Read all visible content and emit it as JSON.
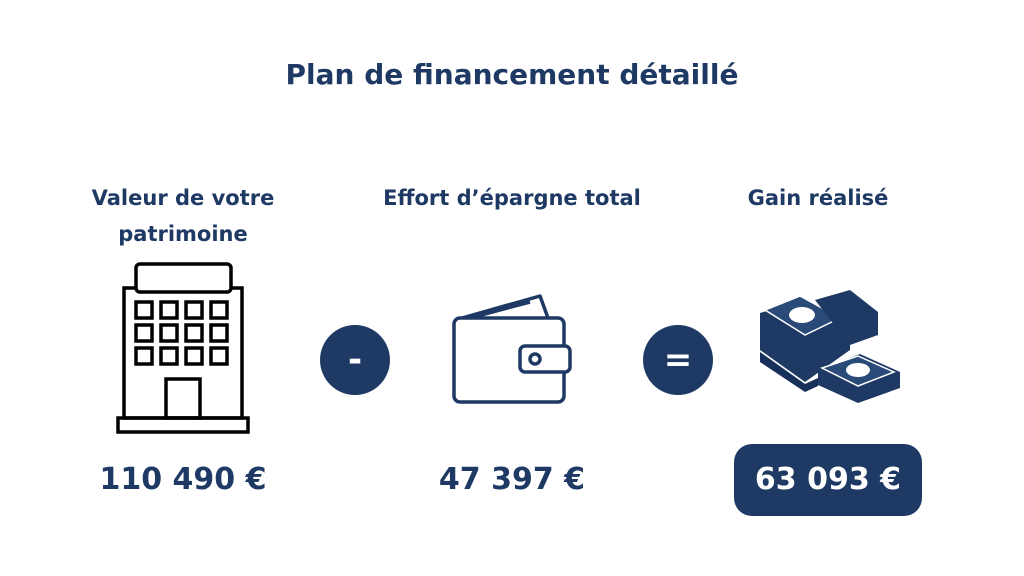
{
  "title": "Plan de financement détaillé",
  "columns": [
    {
      "label": "Valeur de votre patrimoine",
      "value": "110 490 €",
      "icon": "building-icon"
    },
    {
      "label": "Effort d’épargne total",
      "value": "47 397 €",
      "icon": "wallet-icon"
    },
    {
      "label": "Gain réalisé",
      "value": "63 093 €",
      "icon": "money-stack-icon"
    }
  ],
  "operators": {
    "minus": "-",
    "equals": "="
  },
  "colors": {
    "primary": "#1e3a64",
    "background": "#ffffff"
  }
}
